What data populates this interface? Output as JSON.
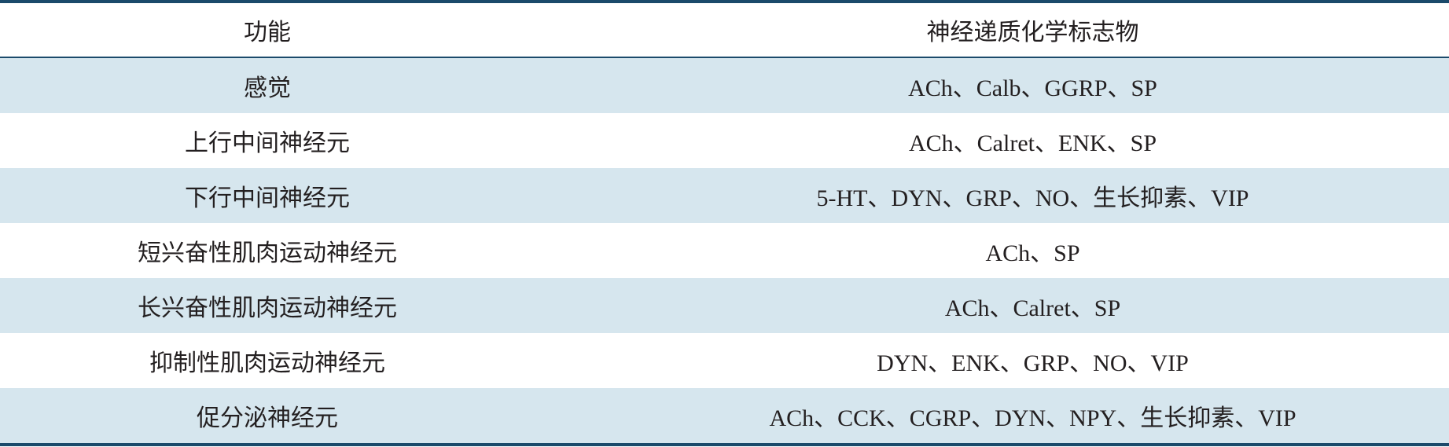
{
  "headers": [
    "功能",
    "神经递质化学标志物"
  ],
  "rows": [
    {
      "function": "感觉",
      "markers": "ACh、Calb、GGRP、SP"
    },
    {
      "function": "上行中间神经元",
      "markers": "ACh、Calret、ENK、SP"
    },
    {
      "function": "下行中间神经元",
      "markers": "5-HT、DYN、GRP、NO、生长抑素、VIP"
    },
    {
      "function": "短兴奋性肌肉运动神经元",
      "markers": "ACh、SP"
    },
    {
      "function": "长兴奋性肌肉运动神经元",
      "markers": "ACh、Calret、SP"
    },
    {
      "function": "抑制性肌肉运动神经元",
      "markers": "DYN、ENK、GRP、NO、VIP"
    },
    {
      "function": "促分泌神经元",
      "markers": "ACh、CCK、CGRP、DYN、NPY、生长抑素、VIP"
    }
  ],
  "colors": {
    "rule": "#1b4a6b",
    "stripe": "#d6e6ee"
  }
}
